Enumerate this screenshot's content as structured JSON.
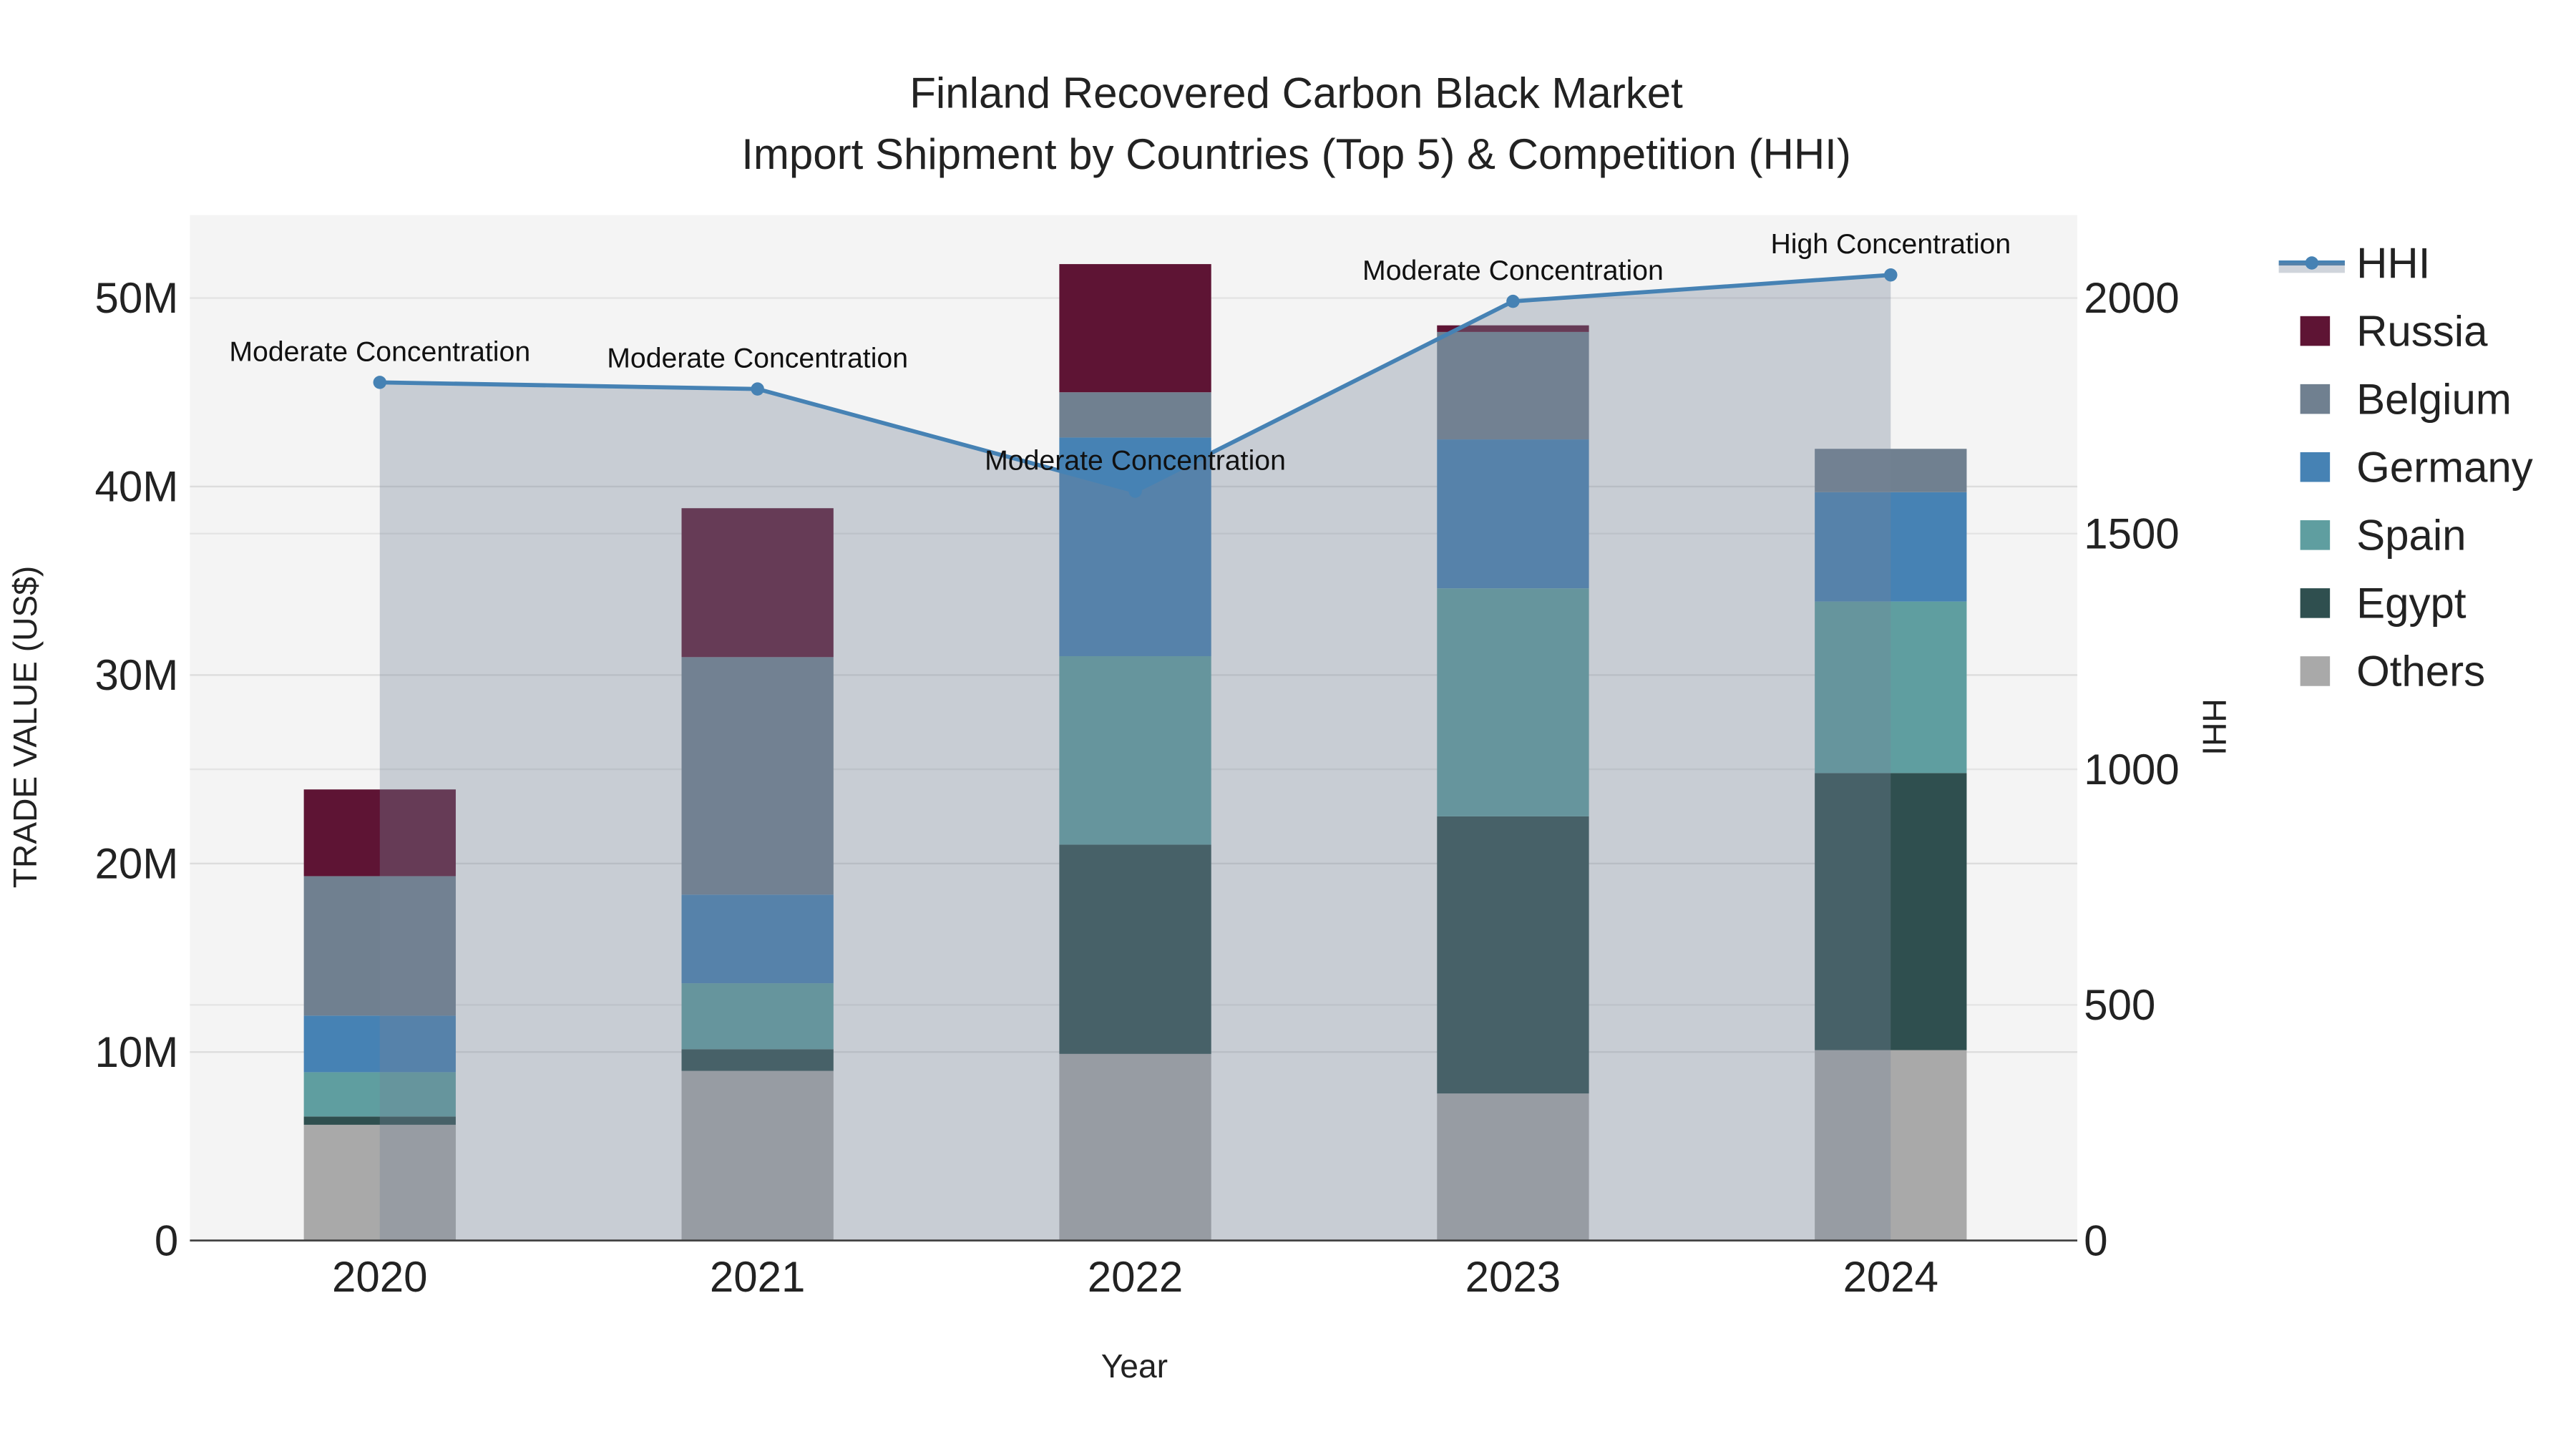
{
  "chart_data": {
    "type": "bar",
    "title": "Finland Recovered Carbon Black Market",
    "subtitle": "Import Shipment by Countries (Top 5) & Competition (HHI)",
    "xlabel": "Year",
    "ylabel": "TRADE VALUE (US$)",
    "y2label": "HHI",
    "categories": [
      "2020",
      "2021",
      "2022",
      "2023",
      "2024"
    ],
    "ylim": [
      0,
      54400000
    ],
    "y2lim": [
      0,
      2176
    ],
    "yticks": [
      {
        "v": 0,
        "label": "0"
      },
      {
        "v": 10000000,
        "label": "10M"
      },
      {
        "v": 20000000,
        "label": "20M"
      },
      {
        "v": 30000000,
        "label": "30M"
      },
      {
        "v": 40000000,
        "label": "40M"
      },
      {
        "v": 50000000,
        "label": "50M"
      }
    ],
    "y2ticks": [
      {
        "v": 0,
        "label": "0"
      },
      {
        "v": 500,
        "label": "500"
      },
      {
        "v": 1000,
        "label": "1000"
      },
      {
        "v": 1500,
        "label": "1500"
      },
      {
        "v": 2000,
        "label": "2000"
      }
    ],
    "series": [
      {
        "name": "Others",
        "color": "#a9a9a9",
        "values": [
          6140000,
          9000000,
          9900000,
          7800000,
          10100000
        ]
      },
      {
        "name": "Egypt",
        "color": "#2f4f4f",
        "values": [
          440000,
          1150000,
          11100000,
          14700000,
          14700000
        ]
      },
      {
        "name": "Spain",
        "color": "#5f9ea0",
        "values": [
          2350000,
          3500000,
          10000000,
          12100000,
          9100000
        ]
      },
      {
        "name": "Germany",
        "color": "#4682b4",
        "values": [
          3000000,
          4700000,
          11600000,
          7900000,
          5800000
        ]
      },
      {
        "name": "Belgium",
        "color": "#708090",
        "values": [
          7400000,
          12600000,
          2400000,
          5700000,
          2300000
        ]
      },
      {
        "name": "Russia",
        "color": "#5e1434",
        "values": [
          4600000,
          7900000,
          6800000,
          350000,
          0
        ]
      }
    ],
    "hhi": {
      "name": "HHI",
      "color": "#4682b4",
      "values": [
        1821,
        1807,
        1590,
        1993,
        2049
      ],
      "annotations": [
        "Moderate Concentration",
        "Moderate Concentration",
        "Moderate Concentration",
        "Moderate Concentration",
        "High Concentration"
      ]
    },
    "legend": {
      "placement": "right",
      "order": [
        "HHI",
        "Russia",
        "Belgium",
        "Germany",
        "Spain",
        "Egypt",
        "Others"
      ]
    },
    "grid": true
  }
}
